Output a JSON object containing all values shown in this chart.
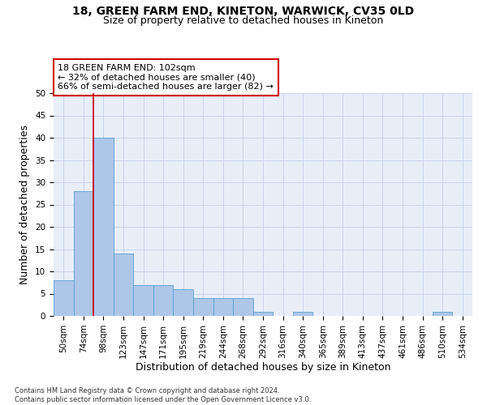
{
  "title_line1": "18, GREEN FARM END, KINETON, WARWICK, CV35 0LD",
  "title_line2": "Size of property relative to detached houses in Kineton",
  "xlabel": "Distribution of detached houses by size in Kineton",
  "ylabel": "Number of detached properties",
  "footnote": "Contains HM Land Registry data © Crown copyright and database right 2024.\nContains public sector information licensed under the Open Government Licence v3.0.",
  "bin_labels": [
    "50sqm",
    "74sqm",
    "98sqm",
    "123sqm",
    "147sqm",
    "171sqm",
    "195sqm",
    "219sqm",
    "244sqm",
    "268sqm",
    "292sqm",
    "316sqm",
    "340sqm",
    "365sqm",
    "389sqm",
    "413sqm",
    "437sqm",
    "461sqm",
    "486sqm",
    "510sqm",
    "534sqm"
  ],
  "bar_values": [
    8,
    28,
    40,
    14,
    7,
    7,
    6,
    4,
    4,
    4,
    1,
    0,
    1,
    0,
    0,
    0,
    0,
    0,
    0,
    1,
    0
  ],
  "bar_color": "#aec6e8",
  "bar_edge_color": "#5a9fd4",
  "subject_label": "18 GREEN FARM END: 102sqm",
  "annotation_line2": "← 32% of detached houses are smaller (40)",
  "annotation_line3": "66% of semi-detached houses are larger (82) →",
  "annotation_box_color": "#ffffff",
  "annotation_box_edge_color": "#cc0000",
  "subject_line_color": "#cc0000",
  "ylim": [
    0,
    50
  ],
  "yticks": [
    0,
    5,
    10,
    15,
    20,
    25,
    30,
    35,
    40,
    45,
    50
  ],
  "grid_color": "#c8d4e8",
  "background_color": "#e8eef8",
  "fig_background": "#ffffff",
  "title_fontsize": 10,
  "subtitle_fontsize": 9,
  "axis_label_fontsize": 9,
  "tick_fontsize": 7.5,
  "annotation_fontsize": 8
}
